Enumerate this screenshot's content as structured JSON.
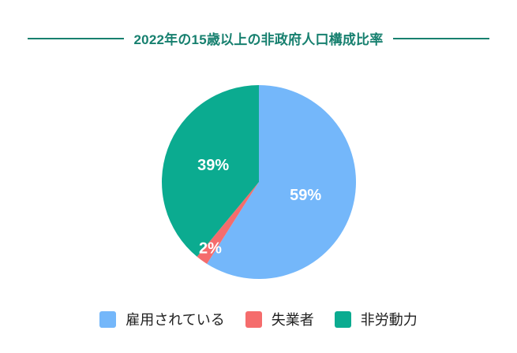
{
  "title": "2022年の15歳以上の非政府人口構成比率",
  "colors": {
    "accent_teal": "#17806F",
    "background": "#FFFFFF",
    "legend_text": "#212121"
  },
  "chart_data": {
    "type": "pie",
    "title": "2022年の15歳以上の非政府人口構成比率",
    "direction": "clockwise",
    "start_angle_deg": 0,
    "legend_position": "bottom",
    "data_label_color": "#FFFFFF",
    "series": [
      {
        "label": "雇用されている",
        "value": 59,
        "data_label": "59%",
        "color": "#74B7FA"
      },
      {
        "label": "失業者",
        "value": 2,
        "data_label": "2%",
        "color": "#F56C6C"
      },
      {
        "label": "非労動力",
        "value": 39,
        "data_label": "39%",
        "color": "#0BAB90"
      }
    ]
  }
}
